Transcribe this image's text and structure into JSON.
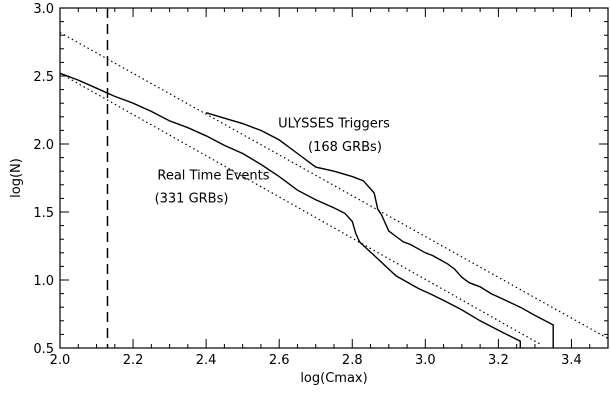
{
  "chart_data": {
    "type": "line",
    "title": "",
    "xlabel": "log(Cmax)",
    "ylabel": "log(N)",
    "xlim": [
      2.0,
      3.5
    ],
    "ylim": [
      0.5,
      3.0
    ],
    "x_ticks": [
      {
        "value": 2.0,
        "label": "2.0"
      },
      {
        "value": 2.2,
        "label": "2.2"
      },
      {
        "value": 2.4,
        "label": "2.4"
      },
      {
        "value": 2.6,
        "label": "2.6"
      },
      {
        "value": 2.8,
        "label": "2.8"
      },
      {
        "value": 3.0,
        "label": "3.0"
      },
      {
        "value": 3.2,
        "label": "3.2"
      },
      {
        "value": 3.4,
        "label": "3.4"
      }
    ],
    "y_ticks": [
      {
        "value": 0.5,
        "label": "0.5"
      },
      {
        "value": 1.0,
        "label": "1.0"
      },
      {
        "value": 1.5,
        "label": "1.5"
      },
      {
        "value": 2.0,
        "label": "2.0"
      },
      {
        "value": 2.5,
        "label": "2.5"
      },
      {
        "value": 3.0,
        "label": "3.0"
      }
    ],
    "grid": false,
    "vertical_line": {
      "x": 2.13,
      "style": "dashed"
    },
    "series": [
      {
        "style": "solid",
        "points": [
          [
            2.4,
            2.23
          ],
          [
            2.45,
            2.19
          ],
          [
            2.5,
            2.15
          ],
          [
            2.55,
            2.1
          ],
          [
            2.6,
            2.03
          ],
          [
            2.65,
            1.93
          ],
          [
            2.7,
            1.83
          ],
          [
            2.75,
            1.8
          ],
          [
            2.8,
            1.76
          ],
          [
            2.83,
            1.73
          ],
          [
            2.86,
            1.64
          ],
          [
            2.87,
            1.52
          ],
          [
            2.88,
            1.48
          ],
          [
            2.89,
            1.42
          ],
          [
            2.9,
            1.36
          ],
          [
            2.92,
            1.32
          ],
          [
            2.94,
            1.28
          ],
          [
            2.96,
            1.26
          ],
          [
            2.98,
            1.23
          ],
          [
            3.0,
            1.2
          ],
          [
            3.02,
            1.18
          ],
          [
            3.04,
            1.15
          ],
          [
            3.06,
            1.12
          ],
          [
            3.08,
            1.08
          ],
          [
            3.1,
            1.02
          ],
          [
            3.12,
            0.98
          ],
          [
            3.15,
            0.95
          ],
          [
            3.18,
            0.9
          ],
          [
            3.22,
            0.85
          ],
          [
            3.26,
            0.8
          ],
          [
            3.3,
            0.74
          ],
          [
            3.35,
            0.67
          ],
          [
            3.35,
            0.5
          ]
        ]
      },
      {
        "style": "solid",
        "points": [
          [
            2.0,
            2.52
          ],
          [
            2.05,
            2.47
          ],
          [
            2.1,
            2.41
          ],
          [
            2.15,
            2.35
          ],
          [
            2.2,
            2.3
          ],
          [
            2.25,
            2.24
          ],
          [
            2.3,
            2.17
          ],
          [
            2.35,
            2.12
          ],
          [
            2.4,
            2.06
          ],
          [
            2.45,
            1.99
          ],
          [
            2.5,
            1.93
          ],
          [
            2.55,
            1.85
          ],
          [
            2.6,
            1.76
          ],
          [
            2.65,
            1.66
          ],
          [
            2.7,
            1.59
          ],
          [
            2.75,
            1.53
          ],
          [
            2.78,
            1.49
          ],
          [
            2.8,
            1.43
          ],
          [
            2.81,
            1.34
          ],
          [
            2.82,
            1.28
          ],
          [
            2.84,
            1.23
          ],
          [
            2.86,
            1.18
          ],
          [
            2.88,
            1.13
          ],
          [
            2.9,
            1.08
          ],
          [
            2.92,
            1.03
          ],
          [
            2.94,
            1.0
          ],
          [
            2.96,
            0.97
          ],
          [
            2.98,
            0.94
          ],
          [
            3.02,
            0.89
          ],
          [
            3.05,
            0.85
          ],
          [
            3.1,
            0.78
          ],
          [
            3.15,
            0.7
          ],
          [
            3.2,
            0.63
          ],
          [
            3.23,
            0.59
          ],
          [
            3.26,
            0.55
          ],
          [
            3.26,
            0.5
          ]
        ]
      },
      {
        "style": "dotted",
        "points": [
          [
            2.0,
            2.82
          ],
          [
            3.5,
            0.57
          ]
        ]
      },
      {
        "style": "dotted",
        "points": [
          [
            2.0,
            2.52
          ],
          [
            3.32,
            0.52
          ]
        ]
      }
    ],
    "annotations": [
      {
        "id": "ulysses-line1",
        "text": "ULYSSES Triggers",
        "x": 2.75,
        "y": 2.12
      },
      {
        "id": "ulysses-line2",
        "text": "(168 GRBs)",
        "x": 2.78,
        "y": 1.95
      },
      {
        "id": "rte-line1",
        "text": "Real Time Events",
        "x": 2.42,
        "y": 1.74
      },
      {
        "id": "rte-line2",
        "text": "(331 GRBs)",
        "x": 2.36,
        "y": 1.57
      }
    ]
  }
}
